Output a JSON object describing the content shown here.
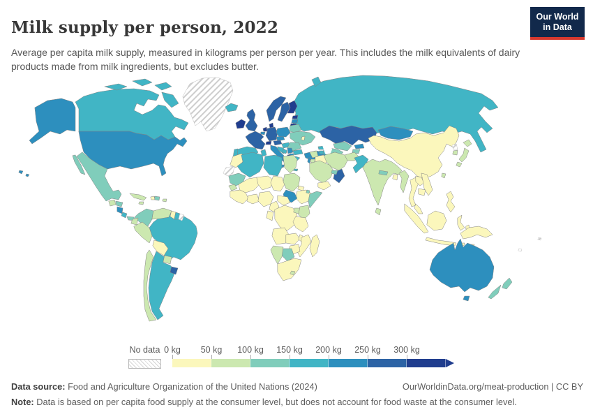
{
  "header": {
    "title": "Milk supply per person, 2022",
    "subtitle": "Average per capita milk supply, measured in kilograms per person per year. This includes the milk equivalents of dairy products made from milk ingredients, but excludes butter.",
    "logo": {
      "line1": "Our World",
      "line2": "in Data",
      "bg_color": "#12294b",
      "accent_color": "#d6382e"
    }
  },
  "legend": {
    "no_data_label": "No data",
    "ticks": [
      "0 kg",
      "50 kg",
      "100 kg",
      "150 kg",
      "200 kg",
      "250 kg",
      "300 kg"
    ]
  },
  "footer": {
    "source_label": "Data source:",
    "source_text": " Food and Agriculture Organization of the United Nations (2024)",
    "link_text": "OurWorldinData.org/meat-production | CC BY",
    "note_label": "Note:",
    "note_text": " Data is based on per capita food supply at the consumer level, but does not account for food waste at the consumer level."
  },
  "chart_data": {
    "type": "choropleth_map",
    "title": "Milk supply per person, 2022",
    "unit": "kg per person per year",
    "no_data_style": "hatched",
    "bins": [
      {
        "range": "0-50 kg",
        "color": "#fbf7bc"
      },
      {
        "range": "50-100 kg",
        "color": "#cce8b0"
      },
      {
        "range": "100-150 kg",
        "color": "#80cdbb"
      },
      {
        "range": "150-200 kg",
        "color": "#41b5c5"
      },
      {
        "range": "200-250 kg",
        "color": "#2d8fbe"
      },
      {
        "range": "250-300 kg",
        "color": "#2c63a5"
      },
      {
        "range": "300+ kg",
        "color": "#203d8e"
      }
    ],
    "regions": {
      "canada": 4,
      "usa": 5,
      "greenland": 0,
      "iceland": 4,
      "mexico": 3,
      "guatemala": 2,
      "honduras": 3,
      "nicaragua": 5,
      "costa_rica": 4,
      "panama": 3,
      "cuba": 2,
      "jamaica": 2,
      "haiti": 1,
      "dominican_republic": 3,
      "puerto_rico": 2,
      "colombia": 3,
      "venezuela": 2,
      "guyana": 1,
      "suriname": 4,
      "french_guiana": 0,
      "ecuador": 2,
      "peru": 2,
      "brazil": 4,
      "bolivia": 1,
      "paraguay": 2,
      "uruguay": 6,
      "argentina": 4,
      "chile": 2,
      "ireland": 7,
      "united_kingdom": 6,
      "france": 6,
      "spain": 4,
      "portugal": 4,
      "norway": 6,
      "sweden": 6,
      "finland": 7,
      "denmark": 7,
      "netherlands": 7,
      "belgium": 5,
      "germany": 6,
      "switzerland": 7,
      "austria": 6,
      "czechia": 5,
      "poland": 5,
      "italy": 5,
      "estonia": 7,
      "latvia": 5,
      "lithuania": 7,
      "belarus": 3,
      "ukraine": 3,
      "moldova": 1,
      "romania": 3,
      "hungary": 4,
      "croatia": 4,
      "bosnia": 4,
      "serbia": 5,
      "albania": 7,
      "north_macedonia": 5,
      "bulgaria": 4,
      "greece": 4,
      "turkey": 5,
      "russia": 4,
      "kazakhstan": 6,
      "uzbekistan": 3,
      "turkmenistan": 3,
      "kyrgyzstan": 5,
      "tajikistan": 3,
      "georgia": 4,
      "armenia": 4,
      "azerbaijan": 4,
      "mongolia": 5,
      "china": 1,
      "north_korea": 0,
      "south_korea": 2,
      "japan": 2,
      "taiwan": 2,
      "india": 2,
      "pakistan": 4,
      "afghanistan": 2,
      "nepal": 3,
      "bangladesh": 1,
      "sri_lanka": 2,
      "myanmar": 2,
      "thailand": 1,
      "laos": 1,
      "vietnam": 1,
      "cambodia": 1,
      "malaysia": 1,
      "indonesia": 1,
      "philippines": 1,
      "papua_new_guinea": 1,
      "iran": 2,
      "iraq": 1,
      "syria": 2,
      "saudi_arabia": 2,
      "yemen": 1,
      "oman": 6,
      "uae": 3,
      "jordan": 2,
      "israel": 5,
      "morocco": 1,
      "western_sahara": 0,
      "algeria": 4,
      "tunisia": 4,
      "libya": 4,
      "egypt": 2,
      "mauritania": 3,
      "mali": 1,
      "niger": 1,
      "chad": 1,
      "sudan": 2,
      "eritrea": 1,
      "ethiopia": 1,
      "djibouti": 3,
      "somalia": 3,
      "south_sudan": 5,
      "senegal": 2,
      "guinea": 1,
      "ghana": 1,
      "nigeria": 1,
      "cameroon": 1,
      "central_african_republic": 1,
      "drc": 1,
      "congo": 1,
      "uganda": 2,
      "kenya": 2,
      "tanzania": 1,
      "angola": 1,
      "zambia": 1,
      "malawi": 1,
      "mozambique": 1,
      "zimbabwe": 1,
      "botswana": 3,
      "namibia": 2,
      "south_africa": 1,
      "lesotho": 2,
      "madagascar": 1,
      "australia": 5,
      "new_zealand": 3,
      "pacific_islands": 0
    }
  }
}
